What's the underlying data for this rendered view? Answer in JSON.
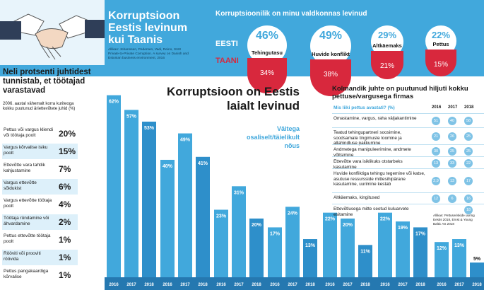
{
  "colors": {
    "accent": "#41a8dc",
    "light": "#7fc3e6",
    "pale": "#ddf0fa",
    "red": "#d8283d"
  },
  "header": {
    "title_lines": [
      "Korruptsioon",
      "Eestis levinum",
      "kui Taanis"
    ],
    "source": "Allikas: Johannsen, Pedersen, Vadi, Reino, Sööt Private-to-Private Corruption. A survey on Danish and Estonian business environment, 2016",
    "survey_question": "Korruptsioonilik on minu valdkonnas levinud",
    "country_ee": "EESTI",
    "country_dk": "TAANI",
    "categories": [
      {
        "label": "Tehingutasu",
        "estonia": "46%",
        "denmark": "34%"
      },
      {
        "label": "Huvide konflikt",
        "estonia": "49%",
        "denmark": "38%"
      },
      {
        "label": "Altkäemaks",
        "estonia": "29%",
        "denmark": "21%"
      },
      {
        "label": "Pettus",
        "estonia": "22%",
        "denmark": "15%"
      }
    ]
  },
  "left_panel": {
    "title": "Neli protsenti juhtidest tunnistab, et töötajad varastavad",
    "subtitle": "2006. aastal vähemalt korra kuriteoga kokku puutunud äriettevõtete juhid (%)",
    "rows": [
      {
        "label": "Pettus või vargus kliendi või töötaja poolt",
        "value": "20%"
      },
      {
        "label": "Vargus kõrvalise isiku poolt",
        "value": "15%"
      },
      {
        "label": "Ettevõtte vara tahtlik kahjustamine",
        "value": "7%"
      },
      {
        "label": "Vargus ettevõtte sõidukist",
        "value": "6%"
      },
      {
        "label": "Vargus ettevõtte töötaja poolt",
        "value": "4%"
      },
      {
        "label": "Töötaja ründamine või ähvardamine",
        "value": "2%"
      },
      {
        "label": "Pettus ettevõtte töötaja poolt",
        "value": "1%"
      },
      {
        "label": "Rööviti või prooviti röövida",
        "value": "1%"
      },
      {
        "label": "Pettus pangakaardiga kõrvalise",
        "value": "1%"
      }
    ]
  },
  "main": {
    "title": "Korruptsioon on Eestis laialt levinud",
    "subtitle": "Väitega osaliselt/täielikult nõus"
  },
  "chart_data": {
    "type": "bar",
    "title": "Korruptsioon on Eestis laialt levinud",
    "series_years": [
      "2016",
      "2017",
      "2018"
    ],
    "groups": [
      {
        "values": [
          62,
          57,
          53
        ]
      },
      {
        "values": [
          40,
          49,
          41
        ]
      },
      {
        "values": [
          23,
          31,
          20
        ]
      },
      {
        "values": [
          17,
          24,
          13
        ]
      },
      {
        "values": [
          22,
          20,
          11
        ]
      },
      {
        "values": [
          22,
          19,
          17
        ]
      },
      {
        "values": [
          12,
          13,
          5
        ]
      }
    ],
    "ylim": [
      0,
      66
    ]
  },
  "table": {
    "title": "Kolmandik juhte on puutunud hiljuti kokku pettuse/vargusega firmas",
    "question": "Mis liiki pettus avastati? (%)",
    "years": [
      "2016",
      "2017",
      "2018"
    ],
    "rows": [
      {
        "label": "Omastamine, vargus, raha väljakantimine",
        "values": [
          "51",
          "40",
          "58"
        ]
      },
      {
        "label": "Teatud tehingupartneri soosimine, soodsamate tingimuste loomine ja allahindluse pakkumine",
        "values": [
          "21",
          "26",
          "25"
        ]
      },
      {
        "label": "Andmetega manipuleerimine, andmete võltsimine",
        "values": [
          "30",
          "25",
          "25"
        ]
      },
      {
        "label": "Ettevõtte vara isiklikuks otstarbeks kasutamine",
        "values": [
          "13",
          "33",
          "22"
        ]
      },
      {
        "label": "Huvide konfliktiga tehingu tegemine või katse, asutuse ressursside mittesihipärane kasutamine, uurimine kestab",
        "values": [
          "2,9",
          "13",
          "17"
        ]
      },
      {
        "label": "Altkäemaks, kingitused",
        "values": [
          "12",
          "6",
          "16"
        ]
      },
      {
        "label": "Ettevõtlusega mitte seotud kuluarvete esitamine",
        "values": [
          "",
          "",
          "18"
        ]
      }
    ],
    "source": "Allikas: Pettuseriskide uuring Eestis 2018, Ernst & Young Baltic AS 2018"
  }
}
